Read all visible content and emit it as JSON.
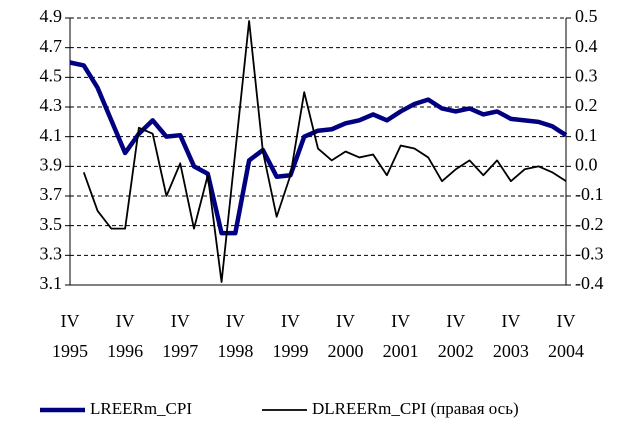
{
  "chart_data": {
    "type": "line",
    "categories": [
      [
        "IV",
        "1995"
      ],
      null,
      null,
      null,
      [
        "IV",
        "1996"
      ],
      null,
      null,
      null,
      [
        "IV",
        "1997"
      ],
      null,
      null,
      null,
      [
        "IV",
        "1998"
      ],
      null,
      null,
      null,
      [
        "IV",
        "1999"
      ],
      null,
      null,
      null,
      [
        "IV",
        "2000"
      ],
      null,
      null,
      null,
      [
        "IV",
        "2001"
      ],
      null,
      null,
      null,
      [
        "IV",
        "2002"
      ],
      null,
      null,
      null,
      [
        "IV",
        "2003"
      ],
      null,
      null,
      null,
      [
        "IV",
        "2004"
      ]
    ],
    "series": [
      {
        "name": "LREERm_CPI",
        "color": "#000080",
        "values": [
          4.6,
          4.58,
          4.43,
          4.21,
          3.99,
          4.12,
          4.21,
          4.1,
          4.11,
          3.9,
          3.85,
          3.45,
          3.45,
          3.94,
          4.01,
          3.83,
          3.84,
          4.1,
          4.14,
          4.15,
          4.19,
          4.21,
          4.25,
          4.21,
          4.27,
          4.32,
          4.35,
          4.29,
          4.27,
          4.29,
          4.25,
          4.27,
          4.22,
          4.21,
          4.2,
          4.17,
          4.11
        ]
      },
      {
        "name": "DLREERm_CPI (правая ось)",
        "color": "#000000",
        "axis": "y2",
        "values": [
          null,
          -0.02,
          -0.15,
          -0.21,
          -0.21,
          0.13,
          0.11,
          -0.1,
          0.01,
          -0.21,
          -0.03,
          -0.39,
          0.05,
          0.49,
          0.05,
          -0.17,
          -0.03,
          0.25,
          0.06,
          0.02,
          0.05,
          0.03,
          0.04,
          -0.03,
          0.07,
          0.06,
          0.03,
          -0.05,
          -0.01,
          0.02,
          -0.03,
          0.02,
          -0.05,
          -0.01,
          0.0,
          -0.02,
          -0.05
        ]
      }
    ],
    "ylim": [
      3.1,
      4.9
    ],
    "yticks": [
      3.1,
      3.3,
      3.5,
      3.7,
      3.9,
      4.1,
      4.3,
      4.5,
      4.7,
      4.9
    ],
    "y2lim": [
      -0.4,
      0.5
    ],
    "y2ticks": [
      -0.4,
      -0.3,
      -0.2,
      -0.1,
      {
        "value": 0,
        "label": "0.0"
      },
      0.1,
      0.2,
      0.3,
      0.4,
      0.5
    ],
    "grid": true,
    "legend": "bottom"
  }
}
